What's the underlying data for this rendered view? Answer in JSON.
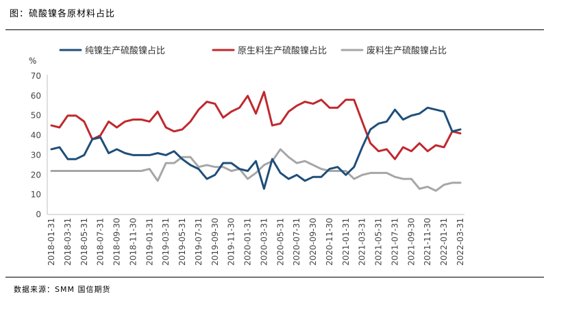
{
  "header": {
    "title": "图：硫酸镍各原材料占比"
  },
  "footer": {
    "source": "数据来源：SMM  国信期货"
  },
  "chart_data": {
    "type": "line",
    "title": "",
    "xlabel": "",
    "ylabel": "%",
    "ylim": [
      0,
      70
    ],
    "yticks": [
      0,
      10,
      20,
      30,
      40,
      50,
      60,
      70
    ],
    "grid": false,
    "legend": "top",
    "x": [
      "2018-01-31",
      "2018-02-28",
      "2018-03-31",
      "2018-04-30",
      "2018-05-31",
      "2018-06-30",
      "2018-07-31",
      "2018-08-31",
      "2018-09-30",
      "2018-10-31",
      "2018-11-30",
      "2018-12-31",
      "2019-01-31",
      "2019-02-28",
      "2019-03-31",
      "2019-04-30",
      "2019-05-31",
      "2019-06-30",
      "2019-07-31",
      "2019-08-31",
      "2019-09-30",
      "2019-10-31",
      "2019-11-30",
      "2019-12-31",
      "2020-01-31",
      "2020-02-29",
      "2020-03-31",
      "2020-04-30",
      "2020-05-31",
      "2020-06-30",
      "2020-07-31",
      "2020-08-31",
      "2020-09-30",
      "2020-10-31",
      "2020-11-30",
      "2020-12-31",
      "2021-01-31",
      "2021-02-28",
      "2021-03-31",
      "2021-04-30",
      "2021-05-31",
      "2021-06-30",
      "2021-07-31",
      "2021-08-31",
      "2021-09-30",
      "2021-10-31",
      "2021-11-30",
      "2021-12-31",
      "2022-01-31",
      "2022-02-28",
      "2022-03-31"
    ],
    "xtick_labels": [
      "2018-01-31",
      "2018-03-31",
      "2018-05-31",
      "2018-07-31",
      "2018-09-30",
      "2018-11-30",
      "2019-01-31",
      "2019-03-31",
      "2019-05-31",
      "2019-07-31",
      "2019-09-30",
      "2019-11-30",
      "2020-01-31",
      "2020-03-31",
      "2020-05-31",
      "2020-07-31",
      "2020-09-30",
      "2020-11-30",
      "2021-01-31",
      "2021-03-31",
      "2021-05-31",
      "2021-07-31",
      "2021-09-30",
      "2021-11-30",
      "2022-01-31",
      "2022-03-31"
    ],
    "series": [
      {
        "name": "纯镍生产硫酸镍占比",
        "color": "#1f4e79",
        "values": [
          33,
          34,
          28,
          28,
          30,
          38,
          39,
          31,
          33,
          31,
          30,
          30,
          30,
          31,
          30,
          32,
          28,
          25,
          23,
          18,
          20,
          26,
          26,
          23,
          22,
          27,
          13,
          28,
          21,
          18,
          20,
          17,
          19,
          19,
          23,
          24,
          20,
          24,
          34,
          43,
          46,
          47,
          53,
          48,
          50,
          51,
          54,
          53,
          52,
          42,
          43
        ]
      },
      {
        "name": "原生料生产硫酸镍占比",
        "color": "#c0282d",
        "values": [
          45,
          44,
          50,
          50,
          47,
          38,
          40,
          47,
          44,
          47,
          48,
          48,
          47,
          52,
          44,
          42,
          43,
          47,
          53,
          57,
          56,
          49,
          52,
          54,
          60,
          51,
          62,
          45,
          46,
          52,
          55,
          57,
          56,
          58,
          54,
          54,
          58,
          58,
          47,
          36,
          32,
          33,
          28,
          34,
          32,
          36,
          32,
          35,
          34,
          42,
          41
        ]
      },
      {
        "name": "废料生产硫酸镍占比",
        "color": "#a6a6a6",
        "values": [
          22,
          22,
          22,
          22,
          22,
          22,
          22,
          22,
          22,
          22,
          22,
          22,
          23,
          17,
          26,
          26,
          29,
          29,
          24,
          25,
          24,
          24,
          22,
          23,
          18,
          21,
          25,
          27,
          33,
          29,
          26,
          27,
          25,
          23,
          22,
          22,
          22,
          18,
          20,
          21,
          21,
          21,
          19,
          18,
          18,
          13,
          14,
          12,
          15,
          16,
          16
        ]
      }
    ]
  }
}
